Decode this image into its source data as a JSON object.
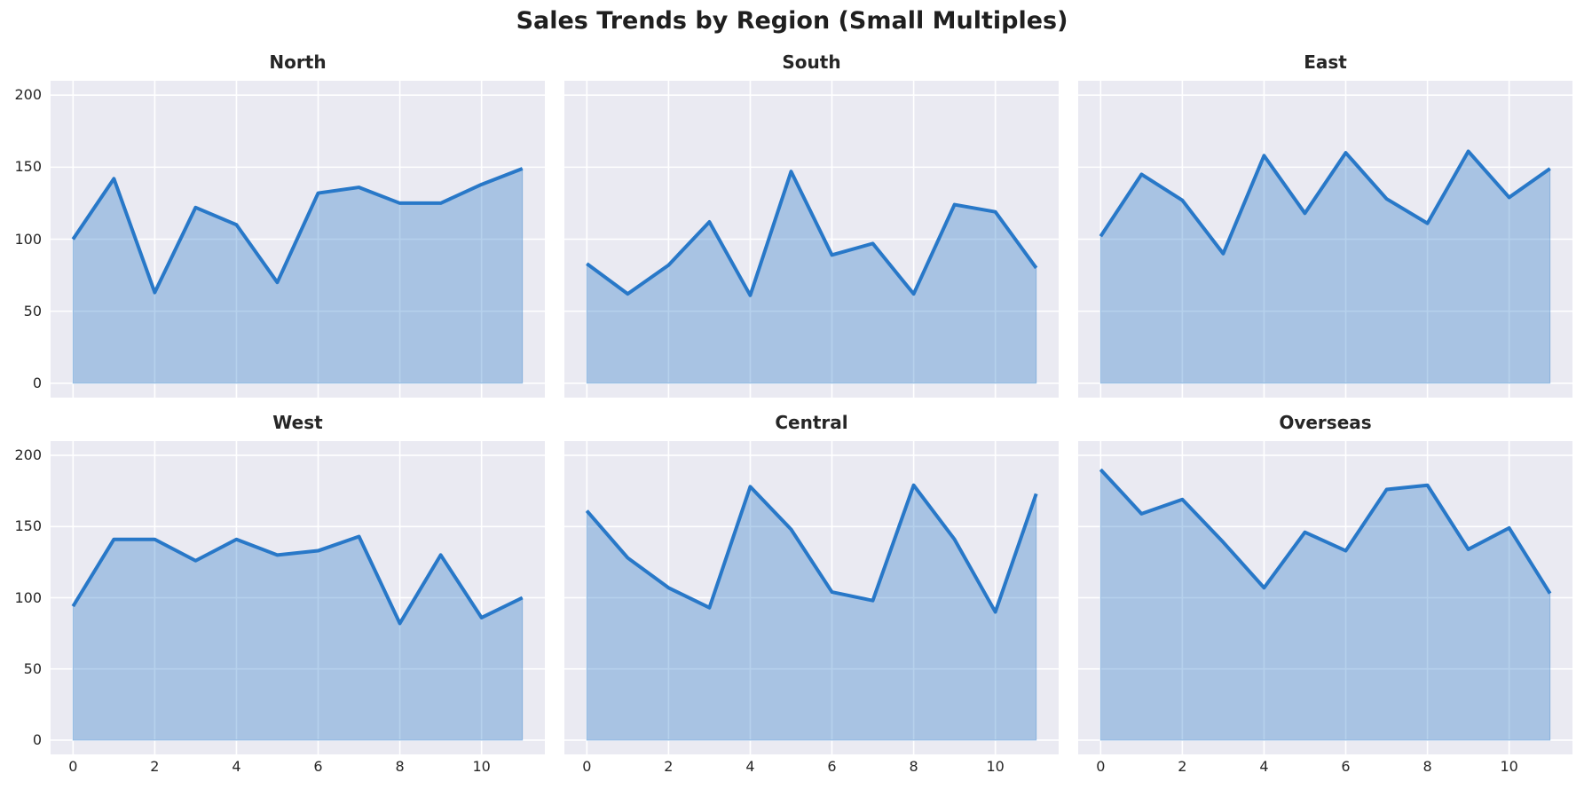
{
  "chart_data": {
    "type": "area",
    "title": "Sales Trends by Region (Small Multiples)",
    "layout": "2 rows x 3 columns, shared axes (y labels on left column only, x labels on bottom row only)",
    "x": [
      0,
      1,
      2,
      3,
      4,
      5,
      6,
      7,
      8,
      9,
      10,
      11
    ],
    "xticks": [
      0,
      2,
      4,
      6,
      8,
      10
    ],
    "yticks": [
      0,
      50,
      100,
      150,
      200
    ],
    "xlim": [
      -0.55,
      11.55
    ],
    "ylim": [
      -10,
      210
    ],
    "grid": true,
    "legend": false,
    "series": [
      {
        "name": "North",
        "values": [
          100,
          142,
          63,
          122,
          110,
          70,
          132,
          136,
          125,
          125,
          138,
          149
        ]
      },
      {
        "name": "South",
        "values": [
          83,
          62,
          82,
          112,
          61,
          147,
          89,
          97,
          62,
          124,
          119,
          80
        ]
      },
      {
        "name": "East",
        "values": [
          102,
          145,
          127,
          90,
          158,
          118,
          160,
          128,
          111,
          161,
          129,
          149
        ]
      },
      {
        "name": "West",
        "values": [
          94,
          141,
          141,
          126,
          141,
          130,
          133,
          143,
          82,
          130,
          86,
          100
        ]
      },
      {
        "name": "Central",
        "values": [
          161,
          128,
          107,
          93,
          178,
          148,
          104,
          98,
          179,
          141,
          90,
          173
        ]
      },
      {
        "name": "Overseas",
        "values": [
          190,
          159,
          169,
          139,
          107,
          146,
          133,
          176,
          179,
          134,
          149,
          103
        ]
      }
    ],
    "colors": {
      "line": "#2878c8",
      "fill": "rgba(40,120,200,0.34)",
      "fill_edge": "rgba(40,120,200,0.38)",
      "axes_background": "#eaeaf2",
      "gridline": "#ffffff",
      "text": "#262626"
    }
  }
}
